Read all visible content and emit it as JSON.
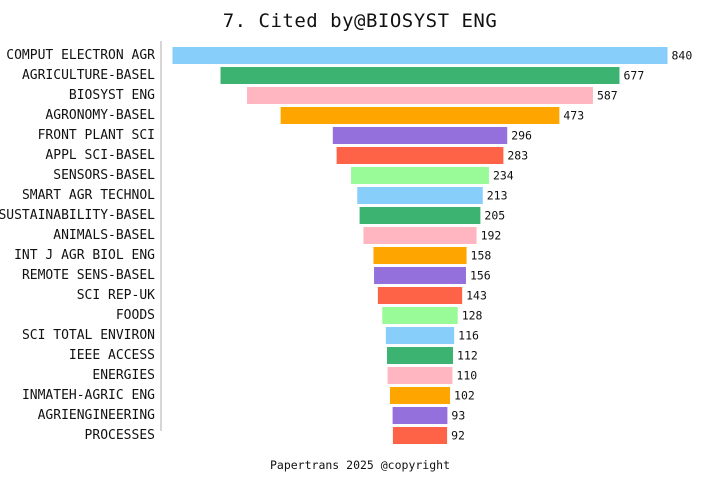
{
  "chart_data": {
    "type": "bar",
    "orientation": "horizontal",
    "layout": "centered-funnel",
    "title": "7. Cited by@BIOSYST ENG",
    "footer": "Papertrans 2025 @copyright",
    "xlabel": "",
    "ylabel": "",
    "grid": false,
    "legend": "none",
    "categories": [
      "COMPUT ELECTRON AGR",
      "AGRICULTURE-BASEL",
      "BIOSYST ENG",
      "AGRONOMY-BASEL",
      "FRONT PLANT SCI",
      "APPL SCI-BASEL",
      "SENSORS-BASEL",
      "SMART AGR TECHNOL",
      "SUSTAINABILITY-BASEL",
      "ANIMALS-BASEL",
      "INT J AGR BIOL ENG",
      "REMOTE SENS-BASEL",
      "SCI REP-UK",
      "FOODS",
      "SCI TOTAL ENVIRON",
      "IEEE ACCESS",
      "ENERGIES",
      "INMATEH-AGRIC ENG",
      "AGRIENGINEERING",
      "PROCESSES"
    ],
    "values": [
      840,
      677,
      587,
      473,
      296,
      283,
      234,
      213,
      205,
      192,
      158,
      156,
      143,
      128,
      116,
      112,
      110,
      102,
      93,
      92
    ],
    "colors": [
      "#87CEFA",
      "#3CB371",
      "#FFB6C1",
      "#FFA500",
      "#9370DB",
      "#FF6347",
      "#98FB98"
    ]
  }
}
